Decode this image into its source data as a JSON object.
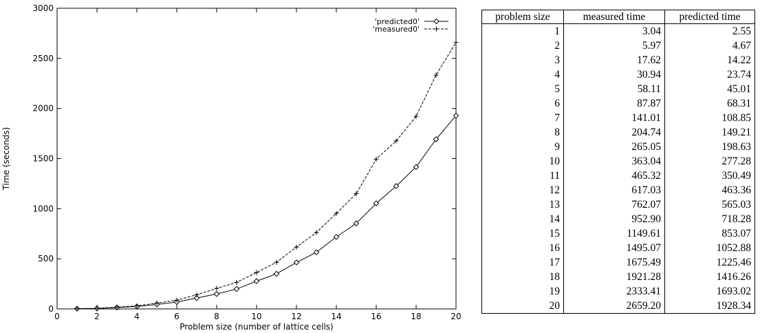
{
  "chart_data": [
    {
      "type": "line",
      "title": "",
      "xlabel": "Problem size (number of lattice cells)",
      "ylabel": "Time (seconds)",
      "xlim": [
        0,
        20
      ],
      "ylim": [
        0,
        3000
      ],
      "x_ticks": [
        0,
        2,
        4,
        6,
        8,
        10,
        12,
        14,
        16,
        18,
        20
      ],
      "y_ticks": [
        0,
        500,
        1000,
        1500,
        2000,
        2500,
        3000
      ],
      "grid": false,
      "legend_position": "top-right",
      "x": [
        1,
        2,
        3,
        4,
        5,
        6,
        7,
        8,
        9,
        10,
        11,
        12,
        13,
        14,
        15,
        16,
        17,
        18,
        19,
        20
      ],
      "series": [
        {
          "name": "'predicted0'",
          "line_style": "solid",
          "marker": "diamond",
          "color": "#000000",
          "values": [
            2.55,
            4.67,
            14.22,
            23.74,
            45.01,
            68.31,
            108.85,
            149.21,
            198.63,
            277.28,
            350.49,
            463.36,
            565.03,
            718.28,
            853.07,
            1052.88,
            1225.46,
            1416.26,
            1693.02,
            1928.34
          ]
        },
        {
          "name": "'measured0'",
          "line_style": "dashed",
          "marker": "plus",
          "color": "#000000",
          "values": [
            3.04,
            5.97,
            17.62,
            30.94,
            58.11,
            87.87,
            141.01,
            204.74,
            265.05,
            363.04,
            465.32,
            617.03,
            762.07,
            952.9,
            1149.61,
            1495.07,
            1675.49,
            1921.28,
            2333.41,
            2659.2
          ]
        }
      ]
    },
    {
      "type": "table",
      "columns": [
        "problem size",
        "measured time",
        "predicted time"
      ],
      "rows": [
        [
          "1",
          "3.04",
          "2.55"
        ],
        [
          "2",
          "5.97",
          "4.67"
        ],
        [
          "3",
          "17.62",
          "14.22"
        ],
        [
          "4",
          "30.94",
          "23.74"
        ],
        [
          "5",
          "58.11",
          "45.01"
        ],
        [
          "6",
          "87.87",
          "68.31"
        ],
        [
          "7",
          "141.01",
          "108.85"
        ],
        [
          "8",
          "204.74",
          "149.21"
        ],
        [
          "9",
          "265.05",
          "198.63"
        ],
        [
          "10",
          "363.04",
          "277.28"
        ],
        [
          "11",
          "465.32",
          "350.49"
        ],
        [
          "12",
          "617.03",
          "463.36"
        ],
        [
          "13",
          "762.07",
          "565.03"
        ],
        [
          "14",
          "952.90",
          "718.28"
        ],
        [
          "15",
          "1149.61",
          "853.07"
        ],
        [
          "16",
          "1495.07",
          "1052.88"
        ],
        [
          "17",
          "1675.49",
          "1225.46"
        ],
        [
          "18",
          "1921.28",
          "1416.26"
        ],
        [
          "19",
          "2333.41",
          "1693.02"
        ],
        [
          "20",
          "2659.20",
          "1928.34"
        ]
      ]
    }
  ]
}
